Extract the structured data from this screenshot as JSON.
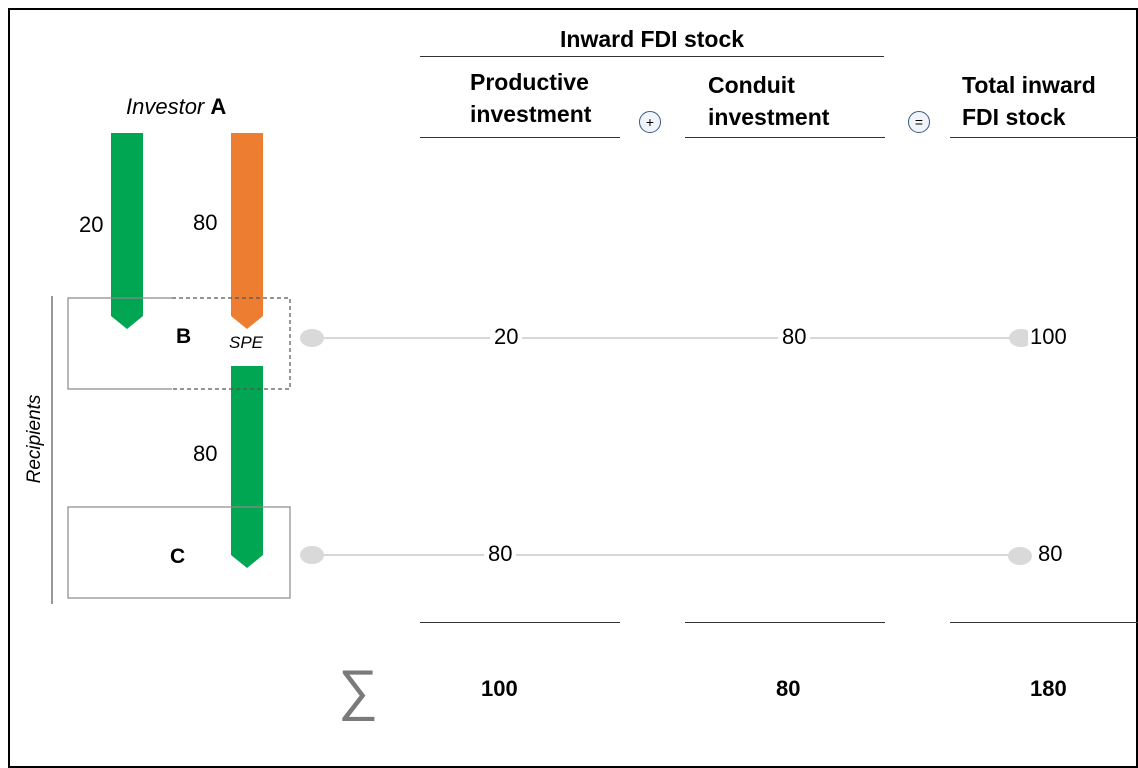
{
  "header": {
    "group_title": "Inward FDI stock",
    "col_productive": [
      "Productive",
      "investment"
    ],
    "col_conduit": [
      "Conduit",
      "investment"
    ],
    "col_total": [
      "Total inward",
      "FDI stock"
    ],
    "plus_symbol": "+",
    "equals_symbol": "="
  },
  "investor": {
    "prefix": "Investor",
    "letter": "A"
  },
  "flows": {
    "a_to_b": 20,
    "a_to_spe": 80,
    "spe_to_c": 80
  },
  "entities": {
    "b_label": "B",
    "spe_label": "SPE",
    "c_label": "C",
    "recipients_label": "Recipients"
  },
  "rows": [
    {
      "entity": "B",
      "productive": "20",
      "conduit": "80",
      "total": "100"
    },
    {
      "entity": "C",
      "productive": "80",
      "conduit": "",
      "total": "80"
    }
  ],
  "totals": {
    "symbol": "∑",
    "productive": "100",
    "conduit": "80",
    "total": "180"
  },
  "colors": {
    "green_arrow": "#00a651",
    "orange_arrow": "#ed7d31",
    "connector": "#d9d9d9"
  }
}
